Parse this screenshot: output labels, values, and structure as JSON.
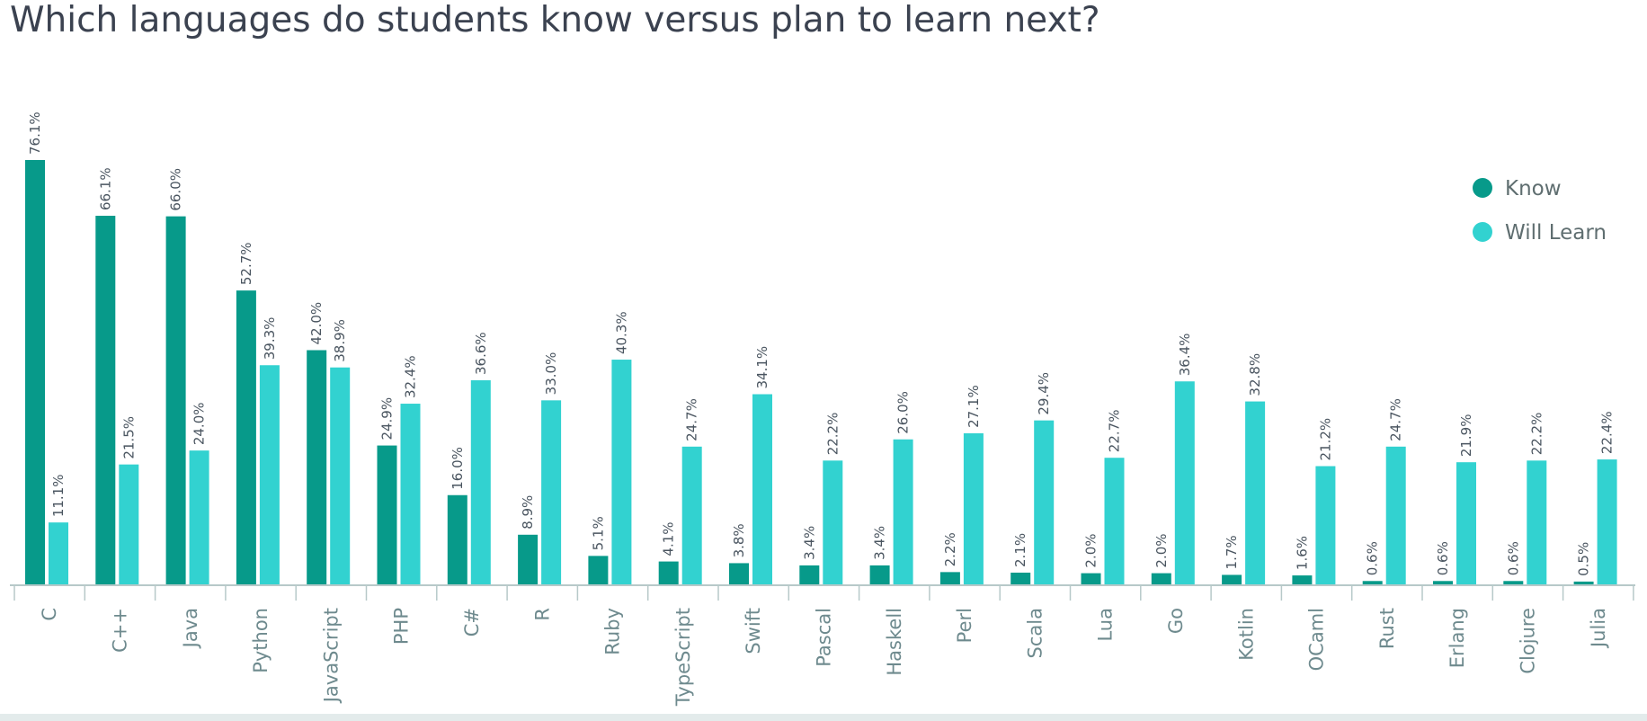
{
  "chart_data": {
    "type": "bar",
    "title": "Which languages do students know versus plan to learn next?",
    "xlabel": "",
    "ylabel": "",
    "ylim": [
      0,
      76.1
    ],
    "grid": false,
    "legend_position": "top-right",
    "categories": [
      "C",
      "C++",
      "Java",
      "Python",
      "JavaScript",
      "PHP",
      "C#",
      "R",
      "Ruby",
      "TypeScript",
      "Swift",
      "Pascal",
      "Haskell",
      "Perl",
      "Scala",
      "Lua",
      "Go",
      "Kotlin",
      "OCaml",
      "Rust",
      "Erlang",
      "Clojure",
      "Julia"
    ],
    "series": [
      {
        "name": "Know",
        "color": "#079a8a",
        "values": [
          76.1,
          66.1,
          66.0,
          52.7,
          42.0,
          24.9,
          16.0,
          8.9,
          5.1,
          4.1,
          3.8,
          3.4,
          3.4,
          2.2,
          2.1,
          2.0,
          2.0,
          1.7,
          1.6,
          0.6,
          0.6,
          0.6,
          0.5
        ],
        "labels": [
          "76.1%",
          "66.1%",
          "66.0%",
          "52.7%",
          "42.0%",
          "24.9%",
          "16.0%",
          "8.9%",
          "5.1%",
          "4.1%",
          "3.8%",
          "3.4%",
          "3.4%",
          "2.2%",
          "2.1%",
          "2.0%",
          "2.0%",
          "1.7%",
          "1.6%",
          "0.6%",
          "0.6%",
          "0.6%",
          "0.5%"
        ]
      },
      {
        "name": "Will Learn",
        "color": "#32d2d0",
        "values": [
          11.1,
          21.5,
          24.0,
          39.3,
          38.9,
          32.4,
          36.6,
          33.0,
          40.3,
          24.7,
          34.1,
          22.2,
          26.0,
          27.1,
          29.4,
          22.7,
          36.4,
          32.8,
          21.2,
          24.7,
          21.9,
          22.2,
          22.4
        ],
        "labels": [
          "11.1%",
          "21.5%",
          "24.0%",
          "39.3%",
          "38.9%",
          "32.4%",
          "36.6%",
          "33.0%",
          "40.3%",
          "24.7%",
          "34.1%",
          "22.2%",
          "26.0%",
          "27.1%",
          "29.4%",
          "22.7%",
          "36.4%",
          "32.8%",
          "21.2%",
          "24.7%",
          "21.9%",
          "22.2%",
          "22.4%"
        ]
      }
    ],
    "colors": {
      "axis": "#b7c9c9",
      "tick_label": "#6e8a8e",
      "data_label": "#4a5560",
      "legend_text": "#5f6e70",
      "title": "#3b4250"
    }
  }
}
